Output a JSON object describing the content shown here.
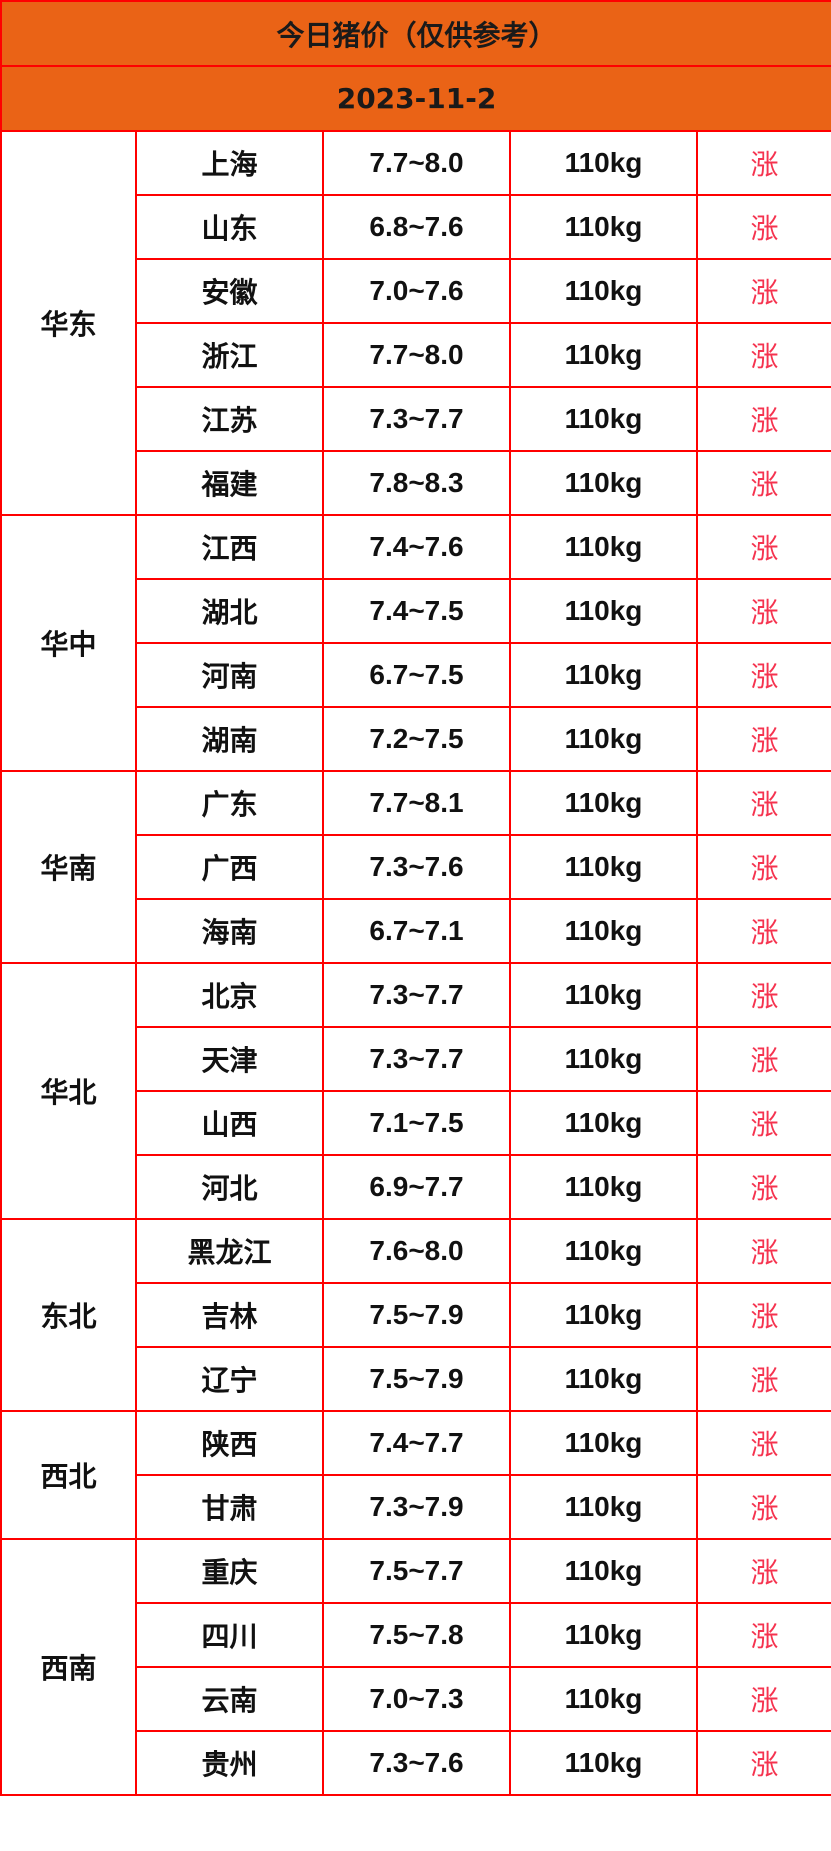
{
  "title": "今日猪价（仅供参考）",
  "date": "2023-11-2",
  "colors": {
    "header_bg": "#ea6316",
    "border": "#ff0000",
    "trend": "#f5334f"
  },
  "regions": [
    {
      "name": "华东",
      "rows": [
        {
          "province": "上海",
          "price": "7.7~8.0",
          "weight": "110kg",
          "trend": "涨"
        },
        {
          "province": "山东",
          "price": "6.8~7.6",
          "weight": "110kg",
          "trend": "涨"
        },
        {
          "province": "安徽",
          "price": "7.0~7.6",
          "weight": "110kg",
          "trend": "涨"
        },
        {
          "province": "浙江",
          "price": "7.7~8.0",
          "weight": "110kg",
          "trend": "涨"
        },
        {
          "province": "江苏",
          "price": "7.3~7.7",
          "weight": "110kg",
          "trend": "涨"
        },
        {
          "province": "福建",
          "price": "7.8~8.3",
          "weight": "110kg",
          "trend": "涨"
        }
      ]
    },
    {
      "name": "华中",
      "rows": [
        {
          "province": "江西",
          "price": "7.4~7.6",
          "weight": "110kg",
          "trend": "涨"
        },
        {
          "province": "湖北",
          "price": "7.4~7.5",
          "weight": "110kg",
          "trend": "涨"
        },
        {
          "province": "河南",
          "price": "6.7~7.5",
          "weight": "110kg",
          "trend": "涨"
        },
        {
          "province": "湖南",
          "price": "7.2~7.5",
          "weight": "110kg",
          "trend": "涨"
        }
      ]
    },
    {
      "name": "华南",
      "rows": [
        {
          "province": "广东",
          "price": "7.7~8.1",
          "weight": "110kg",
          "trend": "涨"
        },
        {
          "province": "广西",
          "price": "7.3~7.6",
          "weight": "110kg",
          "trend": "涨"
        },
        {
          "province": "海南",
          "price": "6.7~7.1",
          "weight": "110kg",
          "trend": "涨"
        }
      ]
    },
    {
      "name": "华北",
      "rows": [
        {
          "province": "北京",
          "price": "7.3~7.7",
          "weight": "110kg",
          "trend": "涨"
        },
        {
          "province": "天津",
          "price": "7.3~7.7",
          "weight": "110kg",
          "trend": "涨"
        },
        {
          "province": "山西",
          "price": "7.1~7.5",
          "weight": "110kg",
          "trend": "涨"
        },
        {
          "province": "河北",
          "price": "6.9~7.7",
          "weight": "110kg",
          "trend": "涨"
        }
      ]
    },
    {
      "name": "东北",
      "rows": [
        {
          "province": "黑龙江",
          "price": "7.6~8.0",
          "weight": "110kg",
          "trend": "涨"
        },
        {
          "province": "吉林",
          "price": "7.5~7.9",
          "weight": "110kg",
          "trend": "涨"
        },
        {
          "province": "辽宁",
          "price": "7.5~7.9",
          "weight": "110kg",
          "trend": "涨"
        }
      ]
    },
    {
      "name": "西北",
      "rows": [
        {
          "province": "陕西",
          "price": "7.4~7.7",
          "weight": "110kg",
          "trend": "涨"
        },
        {
          "province": "甘肃",
          "price": "7.3~7.9",
          "weight": "110kg",
          "trend": "涨"
        }
      ]
    },
    {
      "name": "西南",
      "rows": [
        {
          "province": "重庆",
          "price": "7.5~7.7",
          "weight": "110kg",
          "trend": "涨"
        },
        {
          "province": "四川",
          "price": "7.5~7.8",
          "weight": "110kg",
          "trend": "涨"
        },
        {
          "province": "云南",
          "price": "7.0~7.3",
          "weight": "110kg",
          "trend": "涨"
        },
        {
          "province": "贵州",
          "price": "7.3~7.6",
          "weight": "110kg",
          "trend": "涨"
        }
      ]
    }
  ]
}
